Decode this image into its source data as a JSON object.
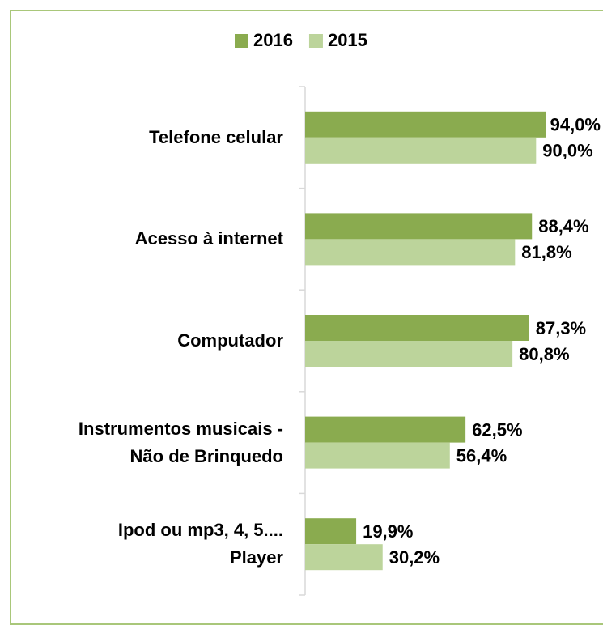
{
  "chart_data": {
    "type": "barh",
    "categories": [
      "Telefone celular",
      "Acesso à internet",
      "Computador",
      "Instrumentos musicais -\nNão de Brinquedo",
      "Ipod ou mp3, 4, 5....\nPlayer"
    ],
    "series": [
      {
        "name": "2016",
        "color": "#8aab4f",
        "values": [
          94.0,
          88.4,
          87.3,
          62.5,
          19.9
        ],
        "value_labels": [
          "94,0%",
          "88,4%",
          "87,3%",
          "62,5%",
          "19,9%"
        ]
      },
      {
        "name": "2015",
        "color": "#bcd49b",
        "values": [
          90.0,
          81.8,
          80.8,
          56.4,
          30.2
        ],
        "value_labels": [
          "90,0%",
          "81,8%",
          "80,8%",
          "56,4%",
          "30,2%"
        ]
      }
    ],
    "xlim": [
      0,
      100
    ],
    "legend": "top"
  }
}
